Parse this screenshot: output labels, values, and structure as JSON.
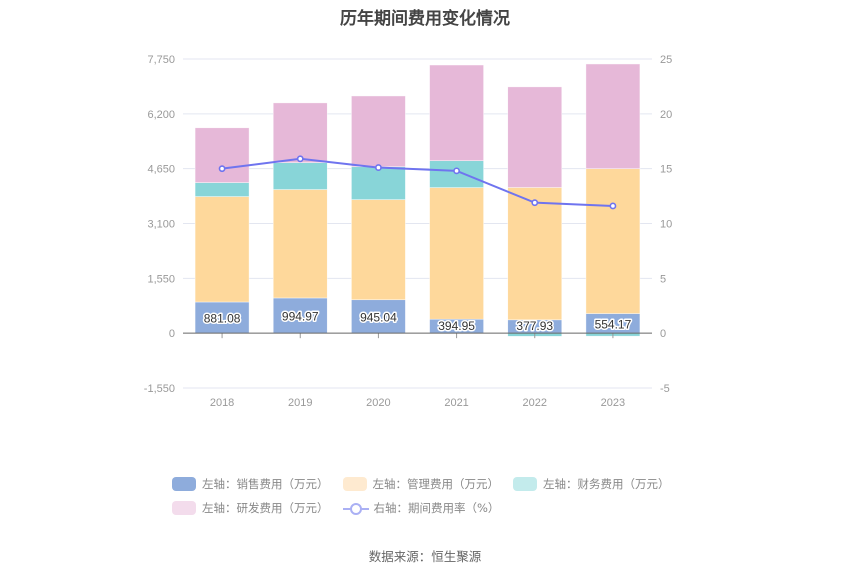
{
  "title": "历年期间费用变化情况",
  "source": "数据来源：恒生聚源",
  "colors": {
    "sales": "#8eacdc",
    "admin": "#fed89b",
    "finance": "#88d5d8",
    "rnd": "#e6b8d8",
    "rate": "#6f74ef",
    "grid": "#e3e6f0",
    "axis": "#666666"
  },
  "chart_data": {
    "type": "bar",
    "stacked": true,
    "title": "历年期间费用变化情况",
    "categories": [
      "2018",
      "2019",
      "2020",
      "2021",
      "2022",
      "2023"
    ],
    "series": [
      {
        "name": "左轴：销售费用（万元）",
        "key": "sales",
        "axis": "left",
        "type": "bar",
        "values": [
          881.08,
          994.97,
          945.04,
          394.95,
          377.93,
          554.17
        ],
        "show_labels": true
      },
      {
        "name": "左轴：管理费用（万元）",
        "key": "admin",
        "axis": "left",
        "type": "bar",
        "values": [
          2980,
          3065,
          2830,
          3720,
          3740,
          4095
        ]
      },
      {
        "name": "左轴：财务费用（万元）",
        "key": "finance",
        "axis": "left",
        "type": "bar",
        "values": [
          395,
          760,
          930,
          760,
          -90,
          -85
        ]
      },
      {
        "name": "左轴：研发费用（万元）",
        "key": "rnd",
        "axis": "left",
        "type": "bar",
        "values": [
          1550,
          1690,
          2000,
          2705,
          2845,
          2960
        ]
      },
      {
        "name": "右轴：期间费用率（%）",
        "key": "rate",
        "axis": "right",
        "type": "line",
        "values": [
          15.0,
          15.9,
          15.1,
          14.8,
          11.9,
          11.6
        ]
      }
    ],
    "left_axis": {
      "ylim": [
        -1550,
        7750
      ],
      "ticks": [
        7750,
        6200,
        4650,
        3100,
        1550,
        0,
        -1550
      ],
      "tick_labels": [
        "7,750",
        "6,200",
        "4,650",
        "3,100",
        "1,550",
        "0",
        "-1,550"
      ]
    },
    "right_axis": {
      "ylim": [
        -5,
        25
      ],
      "ticks": [
        25,
        20,
        15,
        10,
        5,
        0,
        -5
      ],
      "tick_labels": [
        "25",
        "20",
        "15",
        "10",
        "5",
        "0",
        "-5"
      ]
    },
    "grid": true,
    "legend_position": "bottom"
  },
  "legend": [
    {
      "label": "左轴：销售费用（万元）",
      "key": "sales",
      "kind": "bar"
    },
    {
      "label": "左轴：管理费用（万元）",
      "key": "admin",
      "kind": "bar",
      "faded": true
    },
    {
      "label": "左轴：财务费用（万元）",
      "key": "finance",
      "kind": "bar",
      "faded": true
    },
    {
      "label": "左轴：研发费用（万元）",
      "key": "rnd",
      "kind": "bar",
      "faded": true
    },
    {
      "label": "右轴：期间费用率（%）",
      "key": "rate",
      "kind": "line"
    }
  ]
}
